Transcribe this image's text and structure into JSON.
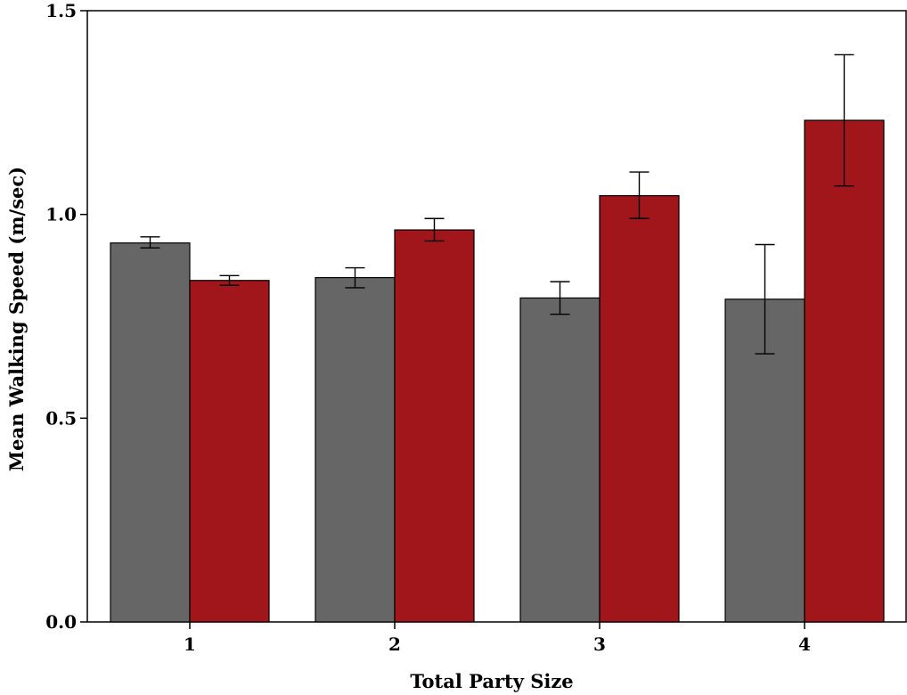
{
  "chart_data": {
    "type": "bar",
    "title": "",
    "xlabel": "Total Party Size",
    "ylabel": "Mean Walking Speed (m/sec)",
    "categories": [
      "1",
      "2",
      "3",
      "4"
    ],
    "ylim": [
      0,
      1.5
    ],
    "yticks": [
      "0.0",
      "0.5",
      "1.0",
      "1.5"
    ],
    "grid": false,
    "legend": "none",
    "series": [
      {
        "color": "#666666",
        "values": [
          0.93,
          0.845,
          0.795,
          0.792
        ],
        "error_low": [
          0.918,
          0.82,
          0.755,
          0.658
        ],
        "error_high": [
          0.945,
          0.869,
          0.835,
          0.926
        ]
      },
      {
        "color": "#a0161a",
        "values": [
          0.838,
          0.962,
          1.046,
          1.231
        ],
        "error_low": [
          0.826,
          0.935,
          0.99,
          1.07
        ],
        "error_high": [
          0.85,
          0.99,
          1.104,
          1.392
        ]
      }
    ]
  }
}
